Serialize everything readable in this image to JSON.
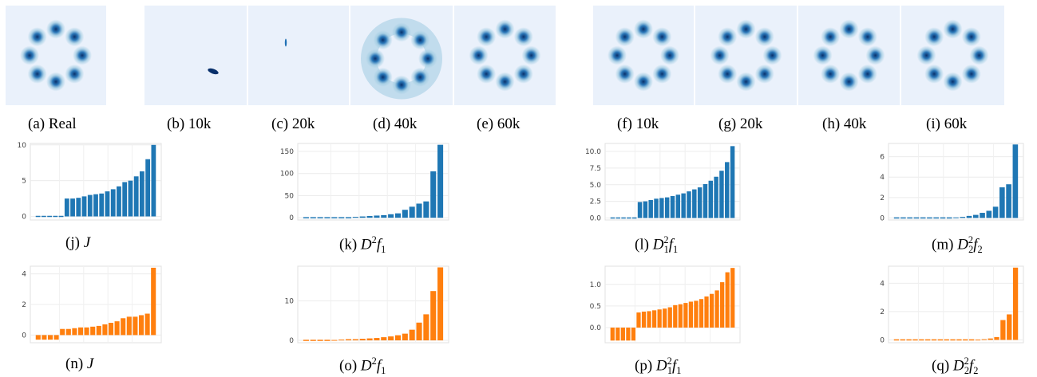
{
  "density_panels": [
    {
      "id": "a",
      "caption_label": "(a)",
      "caption_text": "Real",
      "kind": "ring8"
    },
    {
      "id": "b",
      "caption_label": "(b)",
      "caption_text": "10k",
      "kind": "blob-small"
    },
    {
      "id": "c",
      "caption_label": "(c)",
      "caption_text": "20k",
      "kind": "blob-tiny"
    },
    {
      "id": "d",
      "caption_label": "(d)",
      "caption_text": "40k",
      "kind": "ring8-spread"
    },
    {
      "id": "e",
      "caption_label": "(e)",
      "caption_text": "60k",
      "kind": "ring8"
    },
    {
      "id": "f",
      "caption_label": "(f)",
      "caption_text": "10k",
      "kind": "ring8"
    },
    {
      "id": "g",
      "caption_label": "(g)",
      "caption_text": "20k",
      "kind": "ring8"
    },
    {
      "id": "h",
      "caption_label": "(h)",
      "caption_text": "40k",
      "kind": "ring8"
    },
    {
      "id": "i",
      "caption_label": "(i)",
      "caption_text": "60k",
      "kind": "ring8"
    }
  ],
  "colors": {
    "panel_bg": "#eaf1fb",
    "blue_bar": "#1f77b4",
    "orange_bar": "#ff7f0e",
    "density_dark": "#08306b",
    "density_mid": "#2171b5",
    "density_light": "#9ecae1"
  },
  "chart_data": [
    {
      "id": "j",
      "type": "bar",
      "caption_label": "(j)",
      "caption_math": "J",
      "color": "#1f77b4",
      "values": [
        0,
        0,
        0,
        0,
        0,
        2.5,
        2.5,
        2.6,
        2.8,
        3.0,
        3.1,
        3.2,
        3.5,
        3.8,
        4.2,
        4.8,
        5.0,
        5.6,
        6.3,
        8.0,
        10.0
      ],
      "ylim": [
        -0.5,
        10.2
      ],
      "yticks": [
        0,
        5,
        10
      ],
      "ytick_labels": [
        "0",
        "5",
        "10"
      ]
    },
    {
      "id": "k",
      "type": "bar",
      "caption_label": "(k)",
      "caption_math": "D2f1",
      "color": "#1f77b4",
      "values": [
        0,
        0,
        0,
        0,
        0,
        0,
        0,
        2,
        3,
        4,
        5,
        6,
        8,
        10,
        18,
        25,
        32,
        37,
        105,
        165
      ],
      "ylim": [
        -5,
        168
      ],
      "yticks": [
        0,
        50,
        100,
        150
      ],
      "ytick_labels": [
        "0",
        "50",
        "100",
        "150"
      ]
    },
    {
      "id": "l",
      "type": "bar",
      "caption_label": "(l)",
      "caption_math": "D12f1",
      "color": "#1f77b4",
      "values": [
        0,
        0,
        0,
        0,
        0,
        2.4,
        2.5,
        2.7,
        2.9,
        3.0,
        3.1,
        3.3,
        3.5,
        3.7,
        4.0,
        4.3,
        4.6,
        5.1,
        5.6,
        6.2,
        7.1,
        8.4,
        10.8
      ],
      "ylim": [
        -0.3,
        11.2
      ],
      "yticks": [
        0,
        2.5,
        5,
        7.5,
        10
      ],
      "ytick_labels": [
        "0.0",
        "2.5",
        "5.0",
        "7.5",
        "10.0"
      ]
    },
    {
      "id": "m",
      "type": "bar",
      "caption_label": "(m)",
      "caption_math": "D22f2",
      "color": "#1f77b4",
      "values": [
        0,
        0,
        0,
        0,
        0,
        0,
        0,
        0,
        0,
        0.05,
        0.1,
        0.2,
        0.3,
        0.5,
        0.7,
        1.1,
        3.0,
        3.3,
        7.2
      ],
      "ylim": [
        -0.2,
        7.3
      ],
      "yticks": [
        0,
        2,
        4,
        6
      ],
      "ytick_labels": [
        "0",
        "2",
        "4",
        "6"
      ]
    },
    {
      "id": "n",
      "type": "bar",
      "caption_label": "(n)",
      "caption_math": "J",
      "color": "#ff7f0e",
      "values": [
        -0.3,
        -0.3,
        -0.3,
        -0.3,
        0.4,
        0.4,
        0.45,
        0.5,
        0.5,
        0.55,
        0.6,
        0.7,
        0.8,
        0.9,
        1.1,
        1.2,
        1.2,
        1.3,
        1.4,
        4.4
      ],
      "ylim": [
        -0.5,
        4.5
      ],
      "yticks": [
        0,
        2,
        4
      ],
      "ytick_labels": [
        "0",
        "2",
        "4"
      ]
    },
    {
      "id": "o",
      "type": "bar",
      "caption_label": "(o)",
      "caption_math": "D2f1",
      "color": "#ff7f0e",
      "values": [
        0,
        0,
        0,
        0,
        0.1,
        0.2,
        0.3,
        0.3,
        0.4,
        0.5,
        0.6,
        0.8,
        1.0,
        1.3,
        1.7,
        2.7,
        4.5,
        6.6,
        12.5,
        18.5
      ],
      "ylim": [
        -0.6,
        18.8
      ],
      "yticks": [
        0,
        10
      ],
      "ytick_labels": [
        "0",
        "10"
      ]
    },
    {
      "id": "p",
      "type": "bar",
      "caption_label": "(p)",
      "caption_math": "D12f1",
      "color": "#ff7f0e",
      "values": [
        -0.3,
        -0.3,
        -0.3,
        -0.3,
        -0.3,
        0.35,
        0.37,
        0.38,
        0.4,
        0.42,
        0.44,
        0.47,
        0.52,
        0.54,
        0.57,
        0.6,
        0.62,
        0.66,
        0.72,
        0.78,
        0.86,
        1.05,
        1.28,
        1.38
      ],
      "ylim": [
        -0.35,
        1.42
      ],
      "yticks": [
        0,
        0.5,
        1.0
      ],
      "ytick_labels": [
        "0.0",
        "0.5",
        "1.0"
      ]
    },
    {
      "id": "q",
      "type": "bar",
      "caption_label": "(q)",
      "caption_math": "D22f2",
      "color": "#ff7f0e",
      "values": [
        0,
        0,
        0,
        0,
        0,
        0,
        0,
        0,
        0,
        0,
        0,
        0,
        0,
        0.02,
        0.05,
        0.1,
        0.2,
        1.4,
        1.8,
        5.1
      ],
      "ylim": [
        -0.2,
        5.2
      ],
      "yticks": [
        0,
        2,
        4
      ],
      "ytick_labels": [
        "0",
        "2",
        "4"
      ]
    }
  ]
}
